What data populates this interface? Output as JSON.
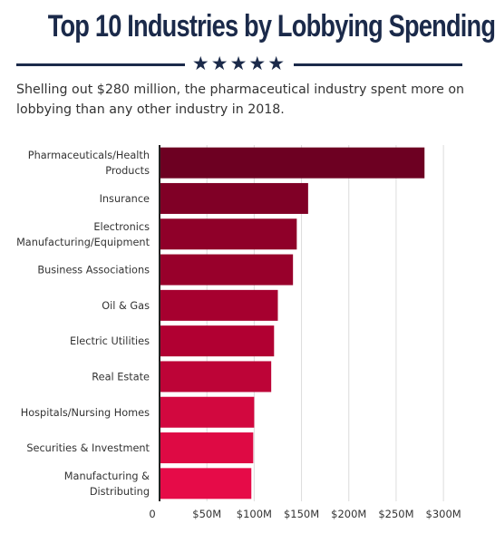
{
  "header": {
    "title": "Top 10 Industries by Lobbying Spending",
    "stars": "★★★★★",
    "subtitle": "Shelling out $280 million, the pharmaceutical industry spent more on lobbying than any other industry in 2018."
  },
  "chart_data": {
    "type": "bar",
    "orientation": "horizontal",
    "categories": [
      [
        "Pharmaceuticals/Health",
        "Products"
      ],
      [
        "Insurance"
      ],
      [
        "Electronics",
        "Manufacturing/Equipment"
      ],
      [
        "Business Associations"
      ],
      [
        "Oil & Gas"
      ],
      [
        "Electric Utilities"
      ],
      [
        "Real Estate"
      ],
      [
        "Hospitals/Nursing Homes"
      ],
      [
        "Securities & Investment"
      ],
      [
        "Manufacturing &",
        "Distributing"
      ]
    ],
    "values": [
      280,
      157,
      145,
      141,
      125,
      121,
      118,
      100,
      99,
      97
    ],
    "colors": [
      "#6d0022",
      "#800026",
      "#8f0029",
      "#98002b",
      "#a6002f",
      "#b10032",
      "#bd0437",
      "#d2083f",
      "#de0a44",
      "#e60b48"
    ],
    "xlim": [
      0,
      320
    ],
    "xticks": [
      0,
      50,
      100,
      150,
      200,
      250,
      300
    ],
    "xtick_labels": [
      "0",
      "$50M",
      "$100M",
      "$150M",
      "$200M",
      "$250M",
      "$300M"
    ],
    "grid": true,
    "xlabel": "",
    "ylabel": ""
  }
}
